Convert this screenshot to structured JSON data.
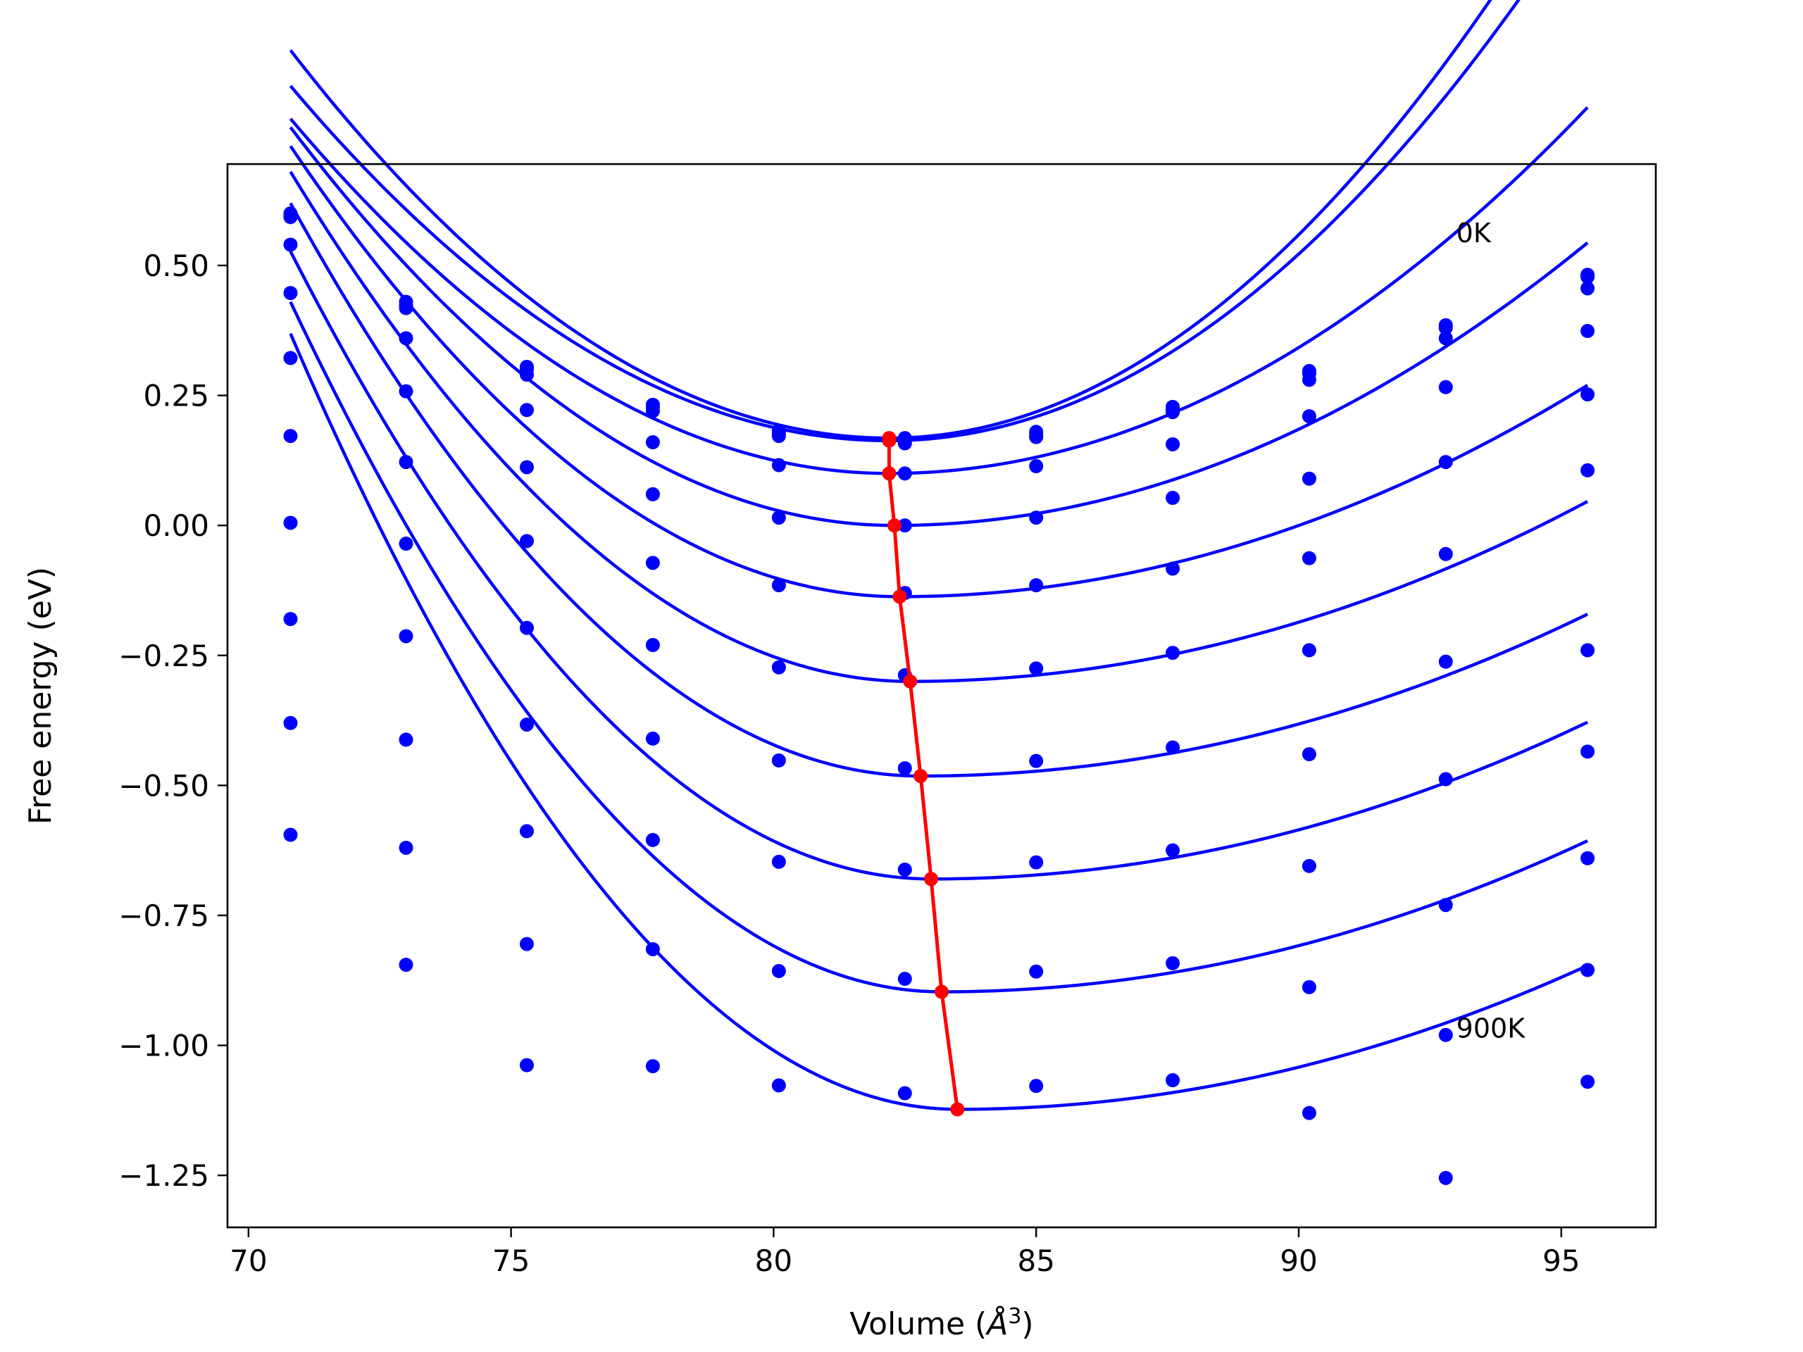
{
  "chart_data": {
    "type": "scatter",
    "title": "",
    "xlabel": "Volume (",
    "xlabel_unit": "Å",
    "xlabel_exp": "3",
    "xlabel_close": ")",
    "ylabel": "Free energy (eV)",
    "xlim": [
      69.6,
      96.8
    ],
    "ylim": [
      -1.35,
      0.695
    ],
    "grid": false,
    "x_ticks": [
      70,
      75,
      80,
      85,
      90,
      95
    ],
    "x_tick_labels": [
      "70",
      "75",
      "80",
      "85",
      "90",
      "95"
    ],
    "y_ticks": [
      -1.25,
      -1.0,
      -0.75,
      -0.5,
      -0.25,
      0.0,
      0.25,
      0.5
    ],
    "y_tick_labels": [
      "−1.25",
      "−1.00",
      "−0.75",
      "−0.50",
      "−0.25",
      "0.00",
      "0.25",
      "0.50"
    ],
    "annotations": [
      {
        "text": "0K",
        "x": 93.0,
        "y": 0.545
      },
      {
        "text": "900K",
        "x": 93.0,
        "y": -0.985
      }
    ],
    "x": [
      70.8,
      73.0,
      75.3,
      77.7,
      80.1,
      82.5,
      85.0,
      87.6,
      90.2,
      92.8,
      95.5
    ],
    "series": [
      {
        "values": [
          0.6,
          0.43,
          0.305,
          0.232,
          0.182,
          0.168,
          0.18,
          0.228,
          0.297,
          0.385,
          0.482
        ],
        "fit": {
          "vmin": 82.2,
          "emin": 0.168,
          "a": 0.00574,
          "b": 0.00643
        }
      },
      {
        "values": [
          0.593,
          0.423,
          0.3,
          0.227,
          0.177,
          0.163,
          0.175,
          0.223,
          0.292,
          0.38,
          0.478
        ]
      },
      {
        "values": [
          0.597,
          0.418,
          0.29,
          0.22,
          0.172,
          0.158,
          0.17,
          0.218,
          0.28,
          0.36,
          0.456
        ],
        "fit": {
          "vmin": 82.2,
          "emin": 0.163,
          "a": 0.00525,
          "b": 0.0059
        }
      },
      {
        "values": [
          0.54,
          0.36,
          0.222,
          0.16,
          0.116,
          0.1,
          0.114,
          0.156,
          0.21,
          0.266,
          0.374
        ],
        "fit": {
          "vmin": 82.2,
          "emin": 0.1,
          "a": 0.00525,
          "b": 0.00398
        }
      },
      {
        "values": [
          0.447,
          0.258,
          0.112,
          0.06,
          0.015,
          0.0,
          0.015,
          0.053,
          0.09,
          0.122,
          0.252
        ],
        "fit": {
          "vmin": 82.3,
          "emin": 0.0,
          "a": 0.00579,
          "b": 0.00312
        }
      },
      {
        "values": [
          0.322,
          0.122,
          -0.03,
          -0.072,
          -0.115,
          -0.13,
          -0.115,
          -0.083,
          -0.063,
          -0.055,
          0.106
        ],
        "fit": {
          "vmin": 82.4,
          "emin": -0.137,
          "a": 0.00644,
          "b": 0.00237
        }
      },
      {
        "values": [
          0.172,
          -0.035,
          -0.197,
          -0.23,
          -0.273,
          -0.288,
          -0.275,
          -0.245,
          -0.24,
          -0.262,
          -0.24
        ],
        "fit": {
          "vmin": 82.6,
          "emin": -0.3,
          "a": 0.00704,
          "b": 0.00208
        }
      },
      {
        "values": [
          0.005,
          -0.213,
          -0.383,
          -0.41,
          -0.452,
          -0.467,
          -0.453,
          -0.427,
          -0.44,
          -0.488,
          -0.435
        ],
        "fit": {
          "vmin": 82.8,
          "emin": -0.482,
          "a": 0.00765,
          "b": 0.00193
        }
      },
      {
        "values": [
          -0.18,
          -0.412,
          -0.588,
          -0.605,
          -0.647,
          -0.662,
          -0.648,
          -0.625,
          -0.655,
          -0.73,
          -0.64
        ],
        "fit": {
          "vmin": 83.0,
          "emin": -0.68,
          "a": 0.00811,
          "b": 0.00193
        }
      },
      {
        "values": [
          -0.38,
          -0.62,
          -0.805,
          -0.815,
          -0.857,
          -0.872,
          -0.858,
          -0.842,
          -0.888,
          -0.98,
          -0.855
        ],
        "fit": {
          "vmin": 83.2,
          "emin": -0.897,
          "a": 0.00863,
          "b": 0.00192
        }
      },
      {
        "values": [
          -0.595,
          -0.845,
          -1.038,
          -1.04,
          -1.077,
          -1.092,
          -1.078,
          -1.067,
          -1.13,
          -1.255,
          -1.07
        ],
        "fit": {
          "vmin": 83.5,
          "emin": -1.123,
          "a": 0.00925,
          "b": 0.00192
        }
      }
    ],
    "minimum_curve": {
      "x": [
        82.2,
        82.2,
        82.2,
        82.3,
        82.4,
        82.6,
        82.8,
        83.0,
        83.2,
        83.5
      ],
      "y": [
        0.168,
        0.163,
        0.1,
        0.0,
        -0.137,
        -0.3,
        -0.482,
        -0.68,
        -0.897,
        -1.123
      ]
    },
    "colors": {
      "points": "#0000ff",
      "fits": "#0000ff",
      "minimum_curve": "#ff0000",
      "axes": "#000000"
    }
  }
}
